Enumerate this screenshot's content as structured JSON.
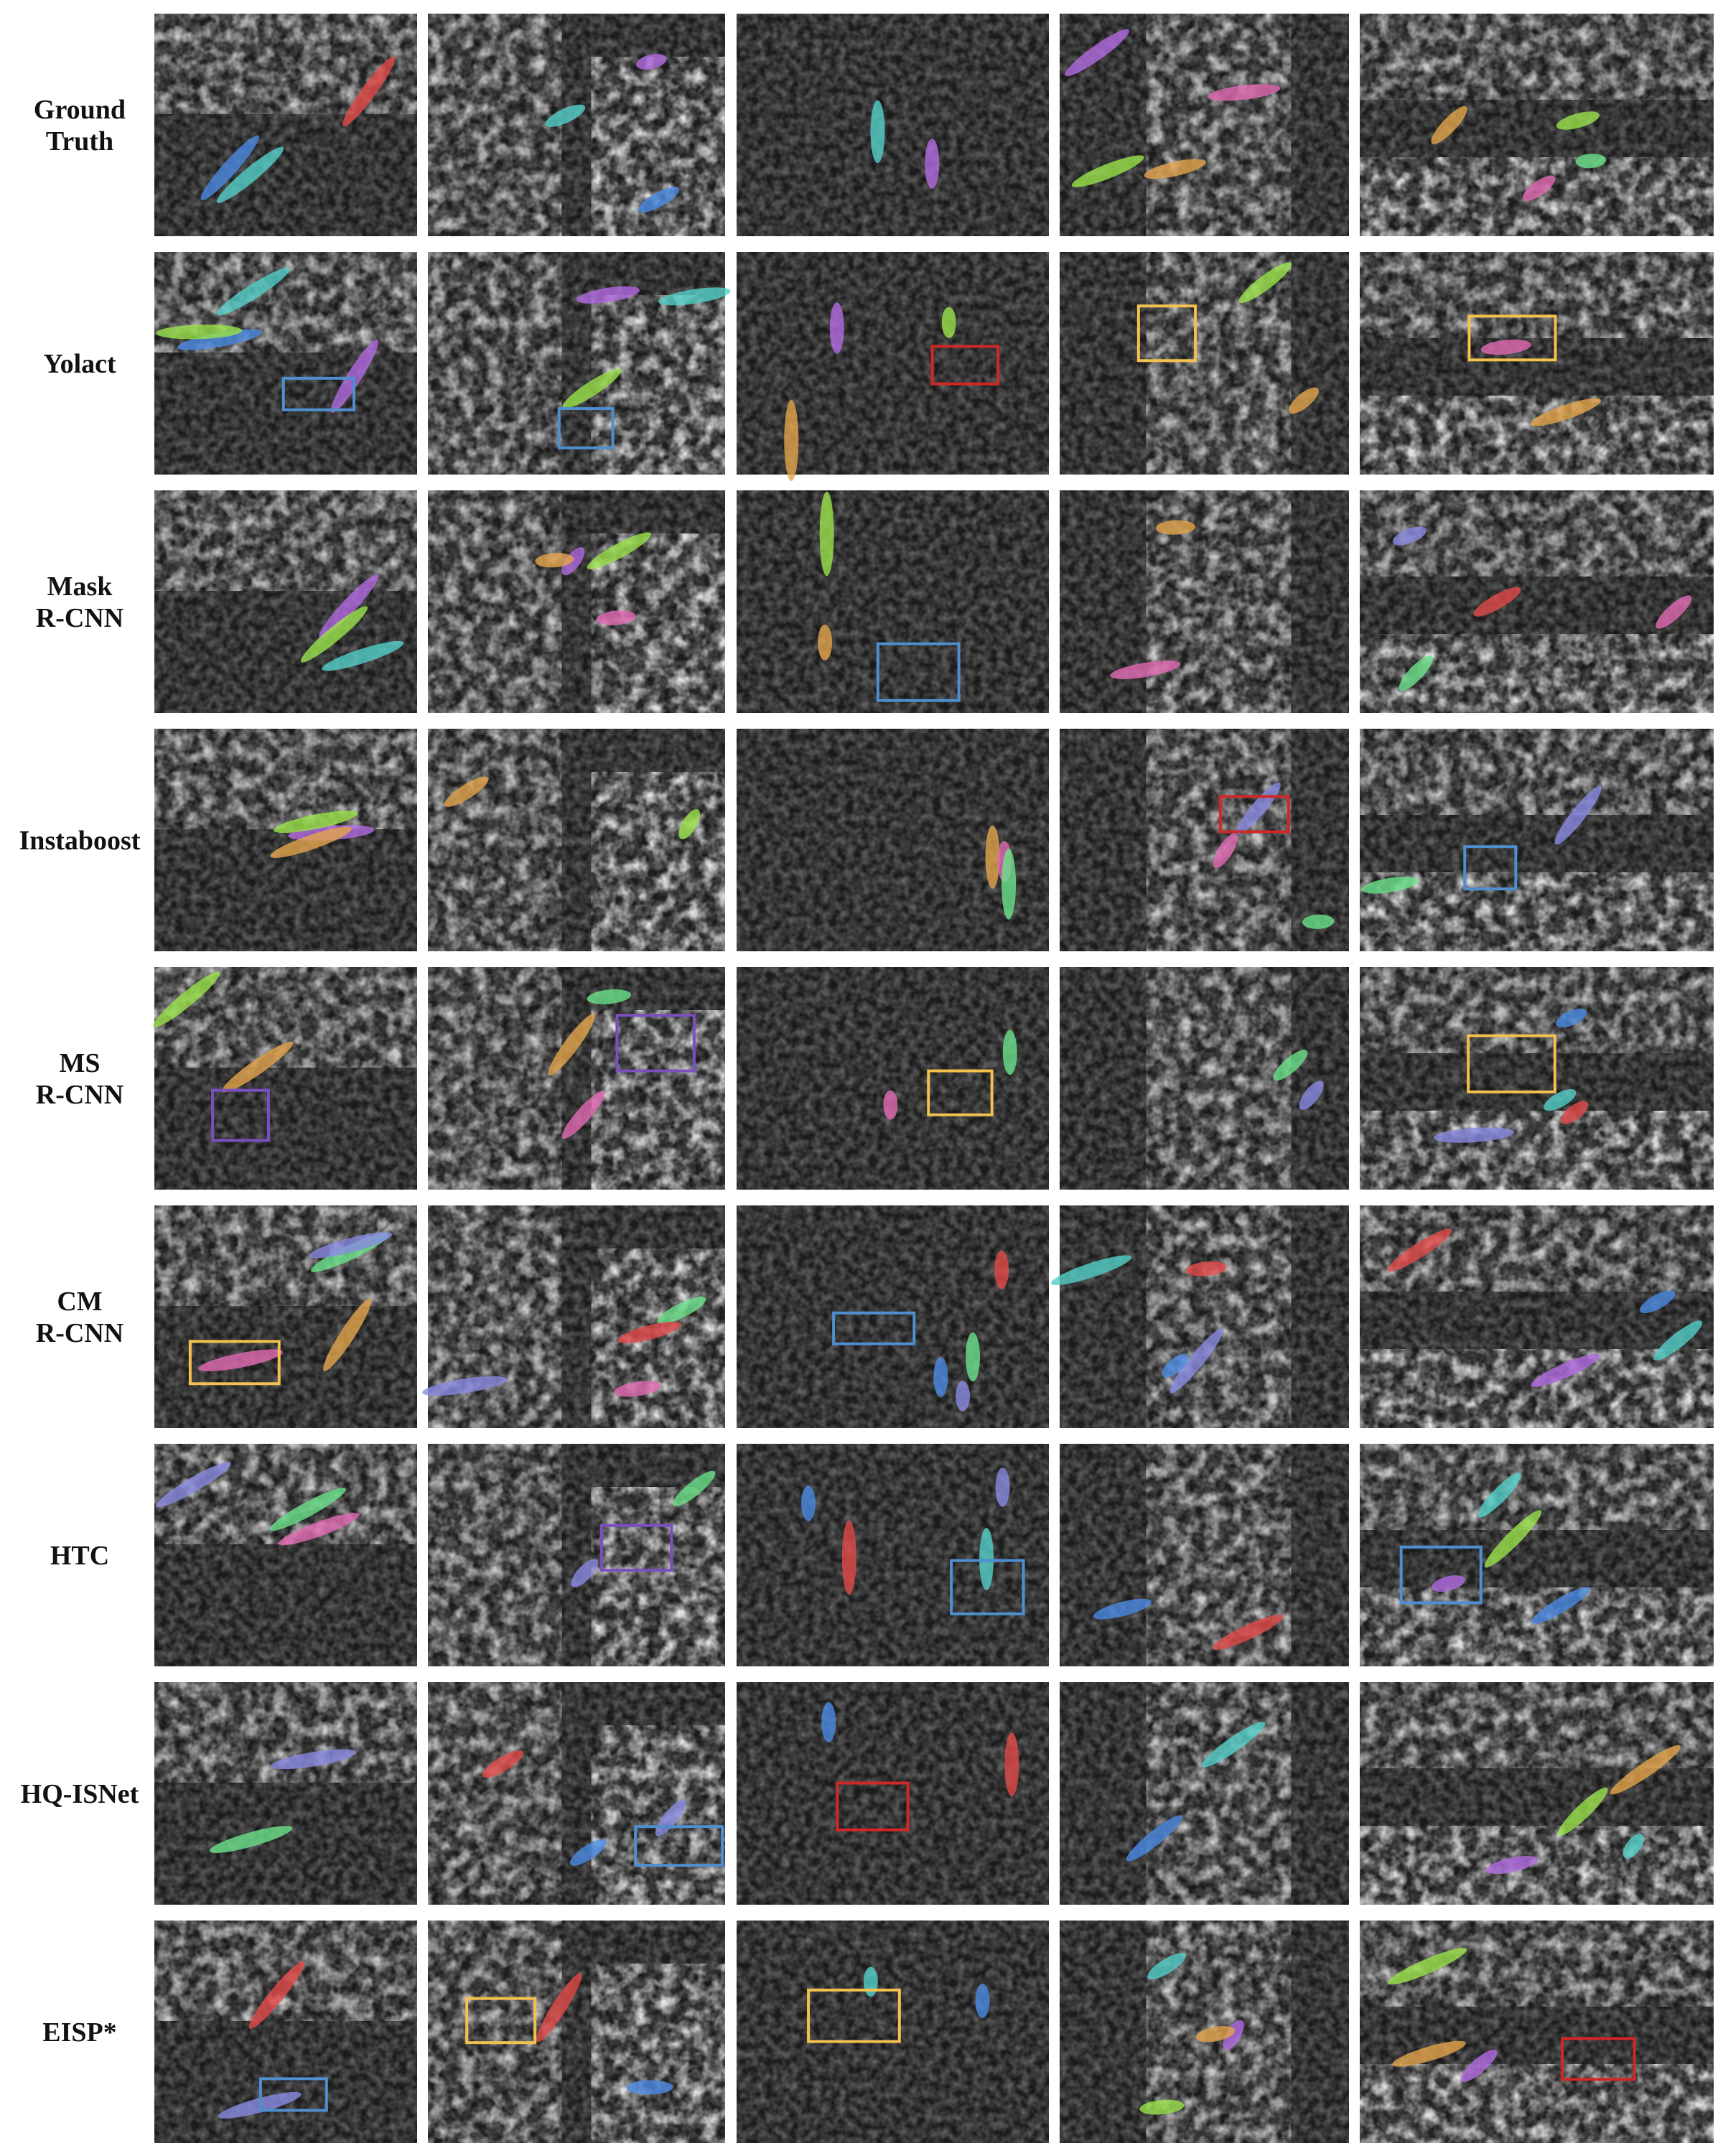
{
  "rows": [
    {
      "label": [
        "Ground",
        "Truth"
      ]
    },
    {
      "label": [
        "Yolact"
      ]
    },
    {
      "label": [
        "Mask",
        "R-CNN"
      ]
    },
    {
      "label": [
        "Instaboost"
      ]
    },
    {
      "label": [
        "MS",
        "R-CNN"
      ]
    },
    {
      "label": [
        "CM",
        "R-CNN"
      ]
    },
    {
      "label": [
        "HTC"
      ]
    },
    {
      "label": [
        "HQ-ISNet"
      ]
    },
    {
      "label": [
        "EISP*"
      ]
    }
  ]
}
